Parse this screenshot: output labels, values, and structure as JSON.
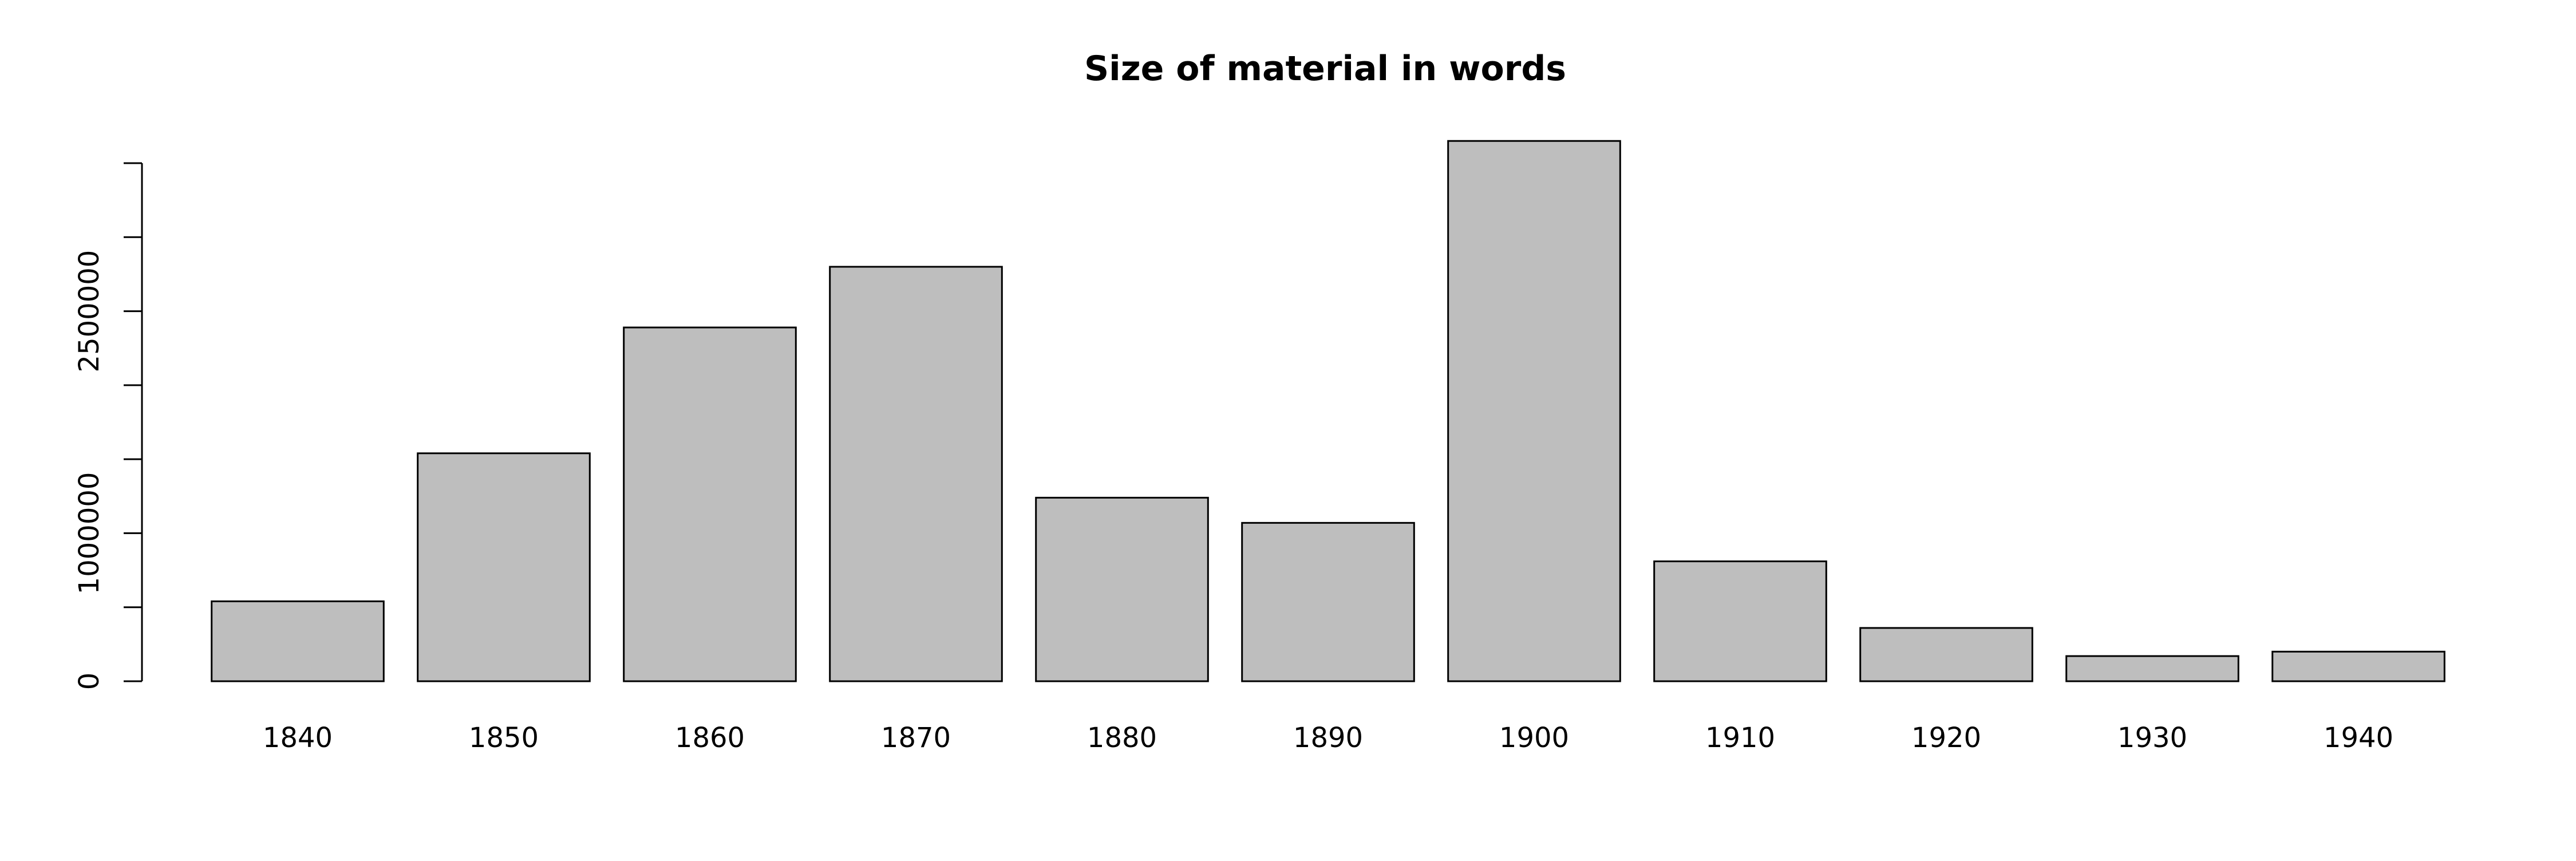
{
  "chart_data": {
    "type": "bar",
    "title": "Size of material in words",
    "xlabel": "",
    "ylabel": "",
    "categories": [
      "1840",
      "1850",
      "1860",
      "1870",
      "1880",
      "1890",
      "1900",
      "1910",
      "1920",
      "1930",
      "1940"
    ],
    "values": [
      540000,
      1540000,
      2390000,
      2800000,
      1240000,
      1070000,
      3650000,
      810000,
      360000,
      170000,
      200000
    ],
    "ylim": [
      0,
      3500000
    ],
    "yticks": [
      0,
      500000,
      1000000,
      1500000,
      2000000,
      2500000,
      3000000,
      3500000
    ],
    "ytick_labels": [
      {
        "value": 0,
        "label": "0"
      },
      {
        "value": 1000000,
        "label": "1000000"
      },
      {
        "value": 2500000,
        "label": "2500000"
      }
    ],
    "bar_fill": "#bebebe",
    "bar_stroke": "#000000",
    "grid": false,
    "legend": "none"
  }
}
